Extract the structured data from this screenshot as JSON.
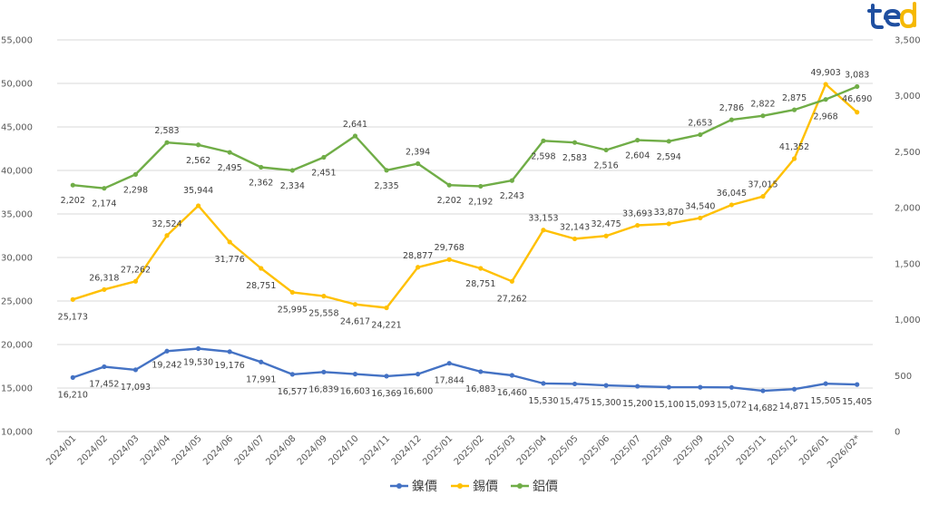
{
  "logo": {
    "text": "ted",
    "colors": [
      "#1f4fa0",
      "#f5b800"
    ]
  },
  "chart_data": {
    "type": "line",
    "title": "",
    "categories": [
      "2024/01",
      "2024/02",
      "2024/03",
      "2024/04",
      "2024/05",
      "2024/06",
      "2024/07",
      "2024/08",
      "2024/09",
      "2024/10",
      "2024/11",
      "2024/12",
      "2025/01",
      "2025/02",
      "2025/03",
      "2025/04",
      "2025/05",
      "2025/06",
      "2025/07",
      "2025/08",
      "2025/09",
      "2025/10",
      "2025/11",
      "2025/12",
      "2026/01",
      "2026/02*"
    ],
    "left_axis": {
      "min": 10000,
      "max": 55000,
      "step": 5000,
      "ticks": [
        "10,000",
        "15,000",
        "20,000",
        "25,000",
        "30,000",
        "35,000",
        "40,000",
        "45,000",
        "50,000",
        "55,000"
      ]
    },
    "right_axis": {
      "min": 0,
      "max": 3500,
      "step": 500,
      "ticks": [
        "0",
        "500",
        "1,000",
        "1,500",
        "2,000",
        "2,500",
        "3,000",
        "3,500"
      ]
    },
    "grid": true,
    "legend_position": "bottom",
    "series": [
      {
        "name": "鎳價",
        "axis": "left",
        "color": "#4472c4",
        "values": [
          16210,
          17452,
          17093,
          19242,
          19530,
          19176,
          17991,
          16577,
          16839,
          16603,
          16369,
          16600,
          17844,
          16883,
          16460,
          15530,
          15475,
          15300,
          15200,
          15100,
          15093,
          15072,
          14682,
          14871,
          15505,
          15405
        ],
        "labels": [
          "16,210",
          "17,452",
          "17,093",
          "19,242",
          "19,530",
          "19,176",
          "17,991",
          "16,577",
          "16,839",
          "16,603",
          "16,369",
          "16,600",
          "17,844",
          "16,883",
          "16,460",
          "15,530",
          "15,475",
          "15,300",
          "15,200",
          "15,100",
          "15,093",
          "15,072",
          "14,682",
          "14,871",
          "15,505",
          "15,405"
        ]
      },
      {
        "name": "錫價",
        "axis": "left",
        "color": "#ffc000",
        "values": [
          25173,
          26318,
          27262,
          32524,
          35944,
          31776,
          28751,
          25995,
          25558,
          24617,
          24221,
          28877,
          29768,
          28751,
          27262,
          33153,
          32143,
          32475,
          33693,
          33870,
          34540,
          36045,
          37015,
          41352,
          49903,
          46690
        ],
        "labels": [
          "25,173",
          "26,318",
          "27,262",
          "32,524",
          "35,944",
          "31,776",
          "28,751",
          "25,995",
          "25,558",
          "24,617",
          "24,221",
          "28,877",
          "29,768",
          "28,751",
          "27,262",
          "33,153",
          "32,143",
          "32,475",
          "33,693",
          "33,870",
          "34,540",
          "36,045",
          "37,015",
          "41,352",
          "49,903",
          "46,690"
        ]
      },
      {
        "name": "鋁價",
        "axis": "right",
        "color": "#70ad47",
        "values": [
          2202,
          2174,
          2298,
          2583,
          2562,
          2495,
          2362,
          2334,
          2451,
          2641,
          2335,
          2394,
          2202,
          2192,
          2243,
          2598,
          2583,
          2516,
          2604,
          2594,
          2653,
          2786,
          2822,
          2875,
          2968,
          3083
        ],
        "labels": [
          "2,202",
          "2,174",
          "2,298",
          "2,583",
          "2,562",
          "2,495",
          "2,362",
          "2,334",
          "2,451",
          "2,641",
          "2,335",
          "2,394",
          "2,202",
          "2,192",
          "2,243",
          "2,598",
          "2,583",
          "2,516",
          "2,604",
          "2,594",
          "2,653",
          "2,786",
          "2,822",
          "2,875",
          "2,968",
          "3,083"
        ]
      }
    ]
  }
}
